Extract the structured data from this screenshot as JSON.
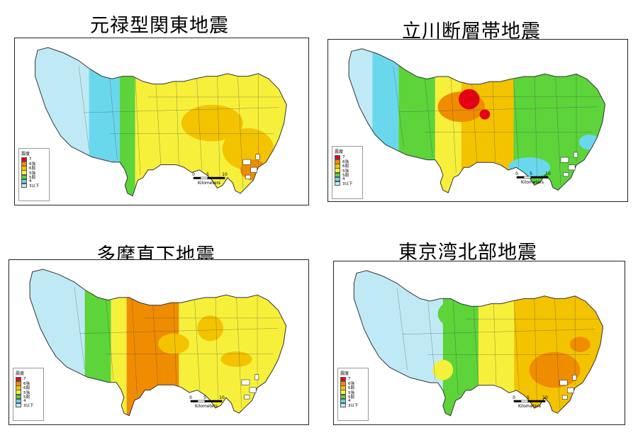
{
  "panels": [
    {
      "title": "元禄型関東地震"
    },
    {
      "title": "立川断層帯地震"
    },
    {
      "title": "多摩直下地震"
    },
    {
      "title": "東京湾北部地震"
    }
  ],
  "legend": {
    "title": "震度",
    "items": [
      {
        "label": "7",
        "color": "#e60012"
      },
      {
        "label": "6強",
        "color": "#f08c00"
      },
      {
        "label": "6弱",
        "color": "#f3c300"
      },
      {
        "label": "5強",
        "color": "#f6f03a"
      },
      {
        "label": "5弱",
        "color": "#5cd43a"
      },
      {
        "label": "4",
        "color": "#67d6e6"
      },
      {
        "label": "3以下",
        "color": "#bfeaf5"
      }
    ]
  },
  "scale_bar": {
    "ticks": [
      "0",
      "5",
      "10"
    ],
    "unit": "Kilometers"
  },
  "colors": {
    "s7": "#e60012",
    "s6u": "#f08c00",
    "s6l": "#f3c300",
    "s5u": "#f6f03a",
    "s5l": "#5cd43a",
    "s4": "#6ad8ec",
    "s3": "#bfeaf5",
    "border": "#333333"
  }
}
